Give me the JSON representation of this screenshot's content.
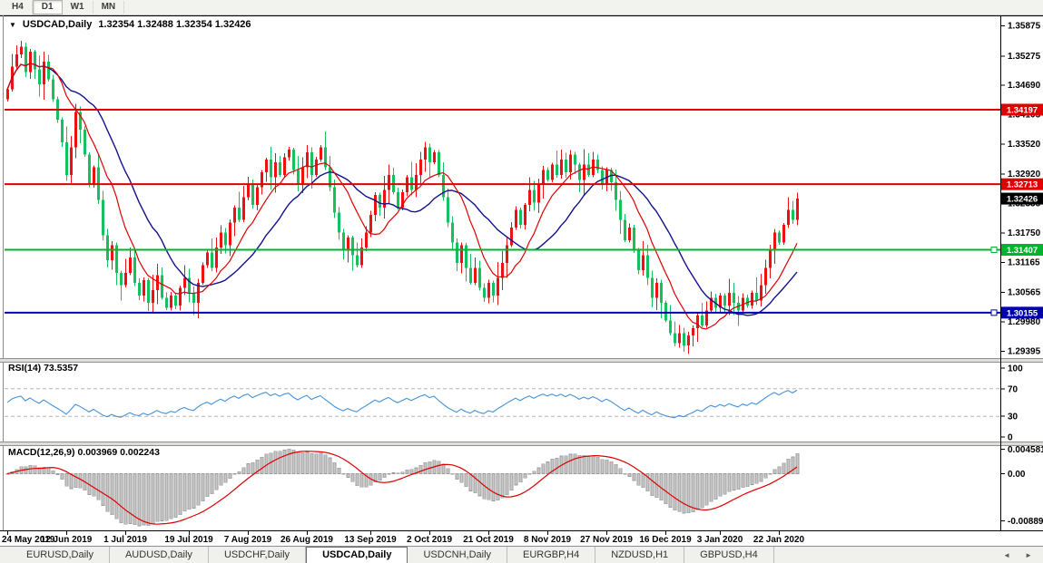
{
  "toolbar": {
    "timeframes": [
      {
        "label": "H4",
        "active": false
      },
      {
        "label": "D1",
        "active": true
      },
      {
        "label": "W1",
        "active": false
      },
      {
        "label": "MN",
        "active": false
      }
    ]
  },
  "header": {
    "collapse_icon": "▼",
    "symbol_title": "USDCAD,Daily",
    "ohlc_readout": "1.32354 1.32488 1.32354 1.32426"
  },
  "chart_data": {
    "type": "candlestick",
    "symbol": "USDCAD",
    "timeframe": "Daily",
    "ohlc_display": {
      "open": "1.32354",
      "high": "1.32488",
      "low": "1.32354",
      "close": "1.32426"
    },
    "price_max": 1.3602,
    "price_min": 1.2925,
    "y_ticks": [
      "1.35875",
      "1.35275",
      "1.34690",
      "1.34105",
      "1.33520",
      "1.32920",
      "1.32335",
      "1.31750",
      "1.31165",
      "1.30565",
      "1.29980",
      "1.29395"
    ],
    "hlines": [
      {
        "price": 1.34197,
        "label": "1.34197",
        "color": "#e00000",
        "marker": false
      },
      {
        "price": 1.32713,
        "label": "1.32713",
        "color": "#e00000",
        "marker": false
      },
      {
        "price": 1.31407,
        "label": "1.31407",
        "color": "#00b32c",
        "marker": true
      },
      {
        "price": 1.30155,
        "label": "1.30155",
        "color": "#0000b0",
        "marker": true
      }
    ],
    "last_price": {
      "label": "1.32426",
      "value": 1.32426,
      "badge_color": "#000000"
    },
    "x_labels": [
      {
        "index": 0,
        "text": "24 May 2019"
      },
      {
        "index": 13,
        "text": "12 Jun 2019"
      },
      {
        "index": 26,
        "text": "1 Jul 2019"
      },
      {
        "index": 40,
        "text": "19 Jul 2019"
      },
      {
        "index": 53,
        "text": "7 Aug 2019"
      },
      {
        "index": 66,
        "text": "26 Aug 2019"
      },
      {
        "index": 80,
        "text": "13 Sep 2019"
      },
      {
        "index": 93,
        "text": "2 Oct 2019"
      },
      {
        "index": 106,
        "text": "21 Oct 2019"
      },
      {
        "index": 119,
        "text": "8 Nov 2019"
      },
      {
        "index": 132,
        "text": "27 Nov 2019"
      },
      {
        "index": 145,
        "text": "16 Dec 2019"
      },
      {
        "index": 157,
        "text": "3 Jan 2020"
      },
      {
        "index": 170,
        "text": "22 Jan 2020"
      }
    ],
    "first_open": 1.344,
    "closes": [
      1.346,
      1.3505,
      1.353,
      1.3545,
      1.3495,
      1.3535,
      1.35,
      1.347,
      1.3515,
      1.348,
      1.344,
      1.34,
      1.3355,
      1.329,
      1.3345,
      1.3415,
      1.338,
      1.333,
      1.327,
      1.3305,
      1.324,
      1.317,
      1.312,
      1.315,
      1.3095,
      1.307,
      1.3095,
      1.3125,
      1.3075,
      1.305,
      1.308,
      1.3035,
      1.306,
      1.309,
      1.3045,
      1.3025,
      1.305,
      1.303,
      1.3065,
      1.3085,
      1.3055,
      1.3035,
      1.3075,
      1.311,
      1.3135,
      1.3105,
      1.3145,
      1.3175,
      1.315,
      1.3195,
      1.3225,
      1.32,
      1.3245,
      1.327,
      1.323,
      1.3265,
      1.3295,
      1.332,
      1.3285,
      1.3315,
      1.329,
      1.3325,
      1.334,
      1.33,
      1.327,
      1.3305,
      1.3335,
      1.329,
      1.332,
      1.3345,
      1.3305,
      1.3265,
      1.3215,
      1.3175,
      1.314,
      1.3165,
      1.313,
      1.311,
      1.3145,
      1.3175,
      1.321,
      1.325,
      1.3225,
      1.326,
      1.329,
      1.3255,
      1.3225,
      1.3255,
      1.3285,
      1.326,
      1.329,
      1.332,
      1.3345,
      1.3315,
      1.3335,
      1.329,
      1.3245,
      1.3195,
      1.3155,
      1.3115,
      1.315,
      1.3105,
      1.3075,
      1.3105,
      1.3065,
      1.3045,
      1.3075,
      1.305,
      1.3085,
      1.3115,
      1.315,
      1.3185,
      1.322,
      1.319,
      1.323,
      1.326,
      1.3235,
      1.327,
      1.33,
      1.328,
      1.331,
      1.329,
      1.332,
      1.3295,
      1.333,
      1.331,
      1.328,
      1.331,
      1.329,
      1.332,
      1.33,
      1.327,
      1.33,
      1.3275,
      1.324,
      1.32,
      1.316,
      1.3185,
      1.314,
      1.31,
      1.313,
      1.3085,
      1.3045,
      1.3075,
      1.3035,
      1.3,
      1.2975,
      1.2955,
      1.2975,
      1.295,
      1.297,
      1.2985,
      1.301,
      1.299,
      1.302,
      1.3045,
      1.3025,
      1.305,
      1.303,
      1.3055,
      1.3035,
      1.302,
      1.3045,
      1.303,
      1.3055,
      1.304,
      1.307,
      1.3105,
      1.314,
      1.3175,
      1.3155,
      1.319,
      1.322,
      1.32,
      1.32426
    ],
    "colors": {
      "up": "#ee1111",
      "down": "#17c05e",
      "ma_fast": "#dd0000",
      "ma_slow": "#12128c",
      "rsi_line": "#4592d8",
      "macd_hist_fill": "#c9c9c9",
      "macd_hist_stroke": "#9b9b9b",
      "macd_signal": "#dd0000"
    },
    "indicators": {
      "ma_fast_period": 10,
      "ma_slow_period": 20,
      "rsi": {
        "label": "RSI(14) 73.5357",
        "period": 14,
        "ticks": [
          100,
          70,
          30,
          0
        ],
        "dashed_levels": [
          70,
          30
        ],
        "range": [
          0,
          100
        ]
      },
      "macd": {
        "label": "MACD(12,26,9) 0.003969 0.002243",
        "fast": 12,
        "slow": 26,
        "signal": 9,
        "ticks": [
          "0.004581",
          "0.00",
          "-0.008894"
        ],
        "range": [
          0.0052,
          -0.0105
        ]
      }
    }
  },
  "tabs": {
    "items": [
      {
        "label": "EURUSD,Daily",
        "active": false
      },
      {
        "label": "AUDUSD,Daily",
        "active": false
      },
      {
        "label": "USDCHF,Daily",
        "active": false
      },
      {
        "label": "USDCAD,Daily",
        "active": true
      },
      {
        "label": "USDCNH,Daily",
        "active": false
      },
      {
        "label": "EURGBP,H4",
        "active": false
      },
      {
        "label": "NZDUSD,H1",
        "active": false
      },
      {
        "label": "GBPUSD,H4",
        "active": false
      }
    ],
    "scroll_left": "◄",
    "scroll_right": "►"
  }
}
